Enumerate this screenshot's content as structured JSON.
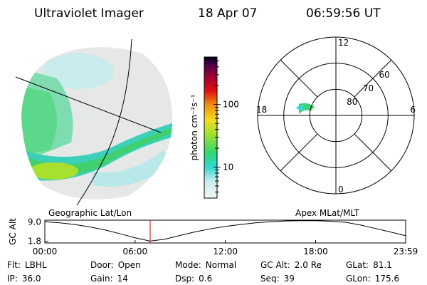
{
  "header": {
    "title": "Ultraviolet Imager",
    "date": "18 Apr 07",
    "time": "06:59:56 UT"
  },
  "image_panel": {
    "label": "Geographic Lat/Lon"
  },
  "colorbar": {
    "label": "photon cm⁻²s⁻¹",
    "scale": "log",
    "lim": [
      3.2,
      575
    ],
    "ticks": [
      10,
      100
    ]
  },
  "polar_panel": {
    "label": "Apex MLat/MLT",
    "mlt_ticks": [
      12,
      6,
      0,
      18
    ],
    "lat_lim": [
      90,
      60
    ],
    "lat_ticks": [
      80,
      70,
      60
    ]
  },
  "altitude_chart": {
    "type": "line",
    "ylabel": "GC Alt",
    "xlim": [
      0,
      1439
    ],
    "ylim": [
      1.2,
      9.6
    ],
    "xticks": [
      {
        "value": 0,
        "label": "00:00"
      },
      {
        "value": 360,
        "label": "06:00"
      },
      {
        "value": 720,
        "label": "12:00"
      },
      {
        "value": 1080,
        "label": "18:00"
      },
      {
        "value": 1439,
        "label": "23:59"
      }
    ],
    "yticks": [
      {
        "value": 9,
        "label": "9.0"
      },
      {
        "value": 1.8,
        "label": "1.8"
      }
    ],
    "x": [
      0,
      60,
      120,
      180,
      240,
      300,
      360,
      420,
      480,
      540,
      600,
      660,
      720,
      780,
      840,
      900,
      960,
      1020,
      1080,
      1140,
      1200,
      1260,
      1320,
      1380,
      1439
    ],
    "values": [
      9.0,
      8.6,
      8.0,
      7.1,
      6.0,
      4.6,
      3.1,
      1.9,
      2.6,
      4.0,
      5.3,
      6.4,
      7.3,
      8.0,
      8.6,
      9.0,
      9.3,
      9.4,
      9.4,
      9.2,
      8.8,
      7.8,
      6.5,
      5.2,
      3.9
    ],
    "color": "#000000",
    "marker_x": 420,
    "marker_color": "#cc0000"
  },
  "status": {
    "rows": [
      [
        {
          "label": "Flt:",
          "value": "LBHL"
        },
        {
          "label": "Door:",
          "value": "Open"
        },
        {
          "label": "Mode:",
          "value": "Normal"
        },
        {
          "label": "GC Alt:",
          "value": "2.0 Re"
        },
        {
          "label": "GLat:",
          "value": "81.1"
        }
      ],
      [
        {
          "label": "IP:",
          "value": "36.0"
        },
        {
          "label": "Gain:",
          "value": "14"
        },
        {
          "label": "Dsp:",
          "value": "0.6"
        },
        {
          "label": "Seq:",
          "value": "39"
        },
        {
          "label": "GLon:",
          "value": "175.6"
        }
      ]
    ]
  }
}
